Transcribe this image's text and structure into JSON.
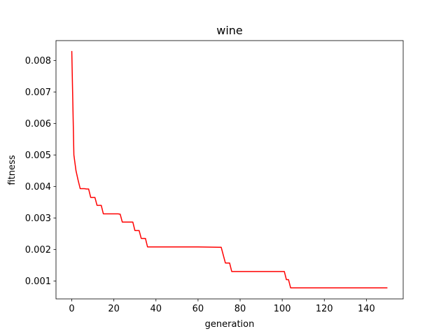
{
  "chart_data": {
    "type": "line",
    "title": "wine",
    "xlabel": "generation",
    "ylabel": "fitness",
    "xlim": [
      -7.5,
      157.5
    ],
    "ylim": [
      0.00043,
      0.00863
    ],
    "xticks": [
      0,
      20,
      40,
      60,
      80,
      100,
      120,
      140
    ],
    "yticks": [
      0.001,
      0.002,
      0.003,
      0.004,
      0.005,
      0.006,
      0.007,
      0.008
    ],
    "xtick_labels": [
      "0",
      "20",
      "40",
      "60",
      "80",
      "100",
      "120",
      "140"
    ],
    "ytick_labels": [
      "0.001",
      "0.002",
      "0.003",
      "0.004",
      "0.005",
      "0.006",
      "0.007",
      "0.008"
    ],
    "grid": false,
    "series": [
      {
        "color": "#ff0000",
        "x": [
          0,
          1,
          2,
          3,
          4,
          5,
          6,
          7,
          8,
          9,
          10,
          11,
          12,
          13,
          14,
          15,
          22,
          23,
          24,
          28,
          29,
          30,
          31,
          32,
          33,
          34,
          35,
          36,
          60,
          70,
          71,
          72,
          73,
          74,
          75,
          76,
          100,
          101,
          102,
          103,
          104,
          150
        ],
        "y": [
          0.0083,
          0.005,
          0.0045,
          0.0042,
          0.00393,
          0.00393,
          0.00393,
          0.00392,
          0.00392,
          0.00365,
          0.00365,
          0.00365,
          0.0034,
          0.0034,
          0.0034,
          0.00313,
          0.00313,
          0.00312,
          0.00287,
          0.00287,
          0.00287,
          0.0026,
          0.0026,
          0.0026,
          0.00235,
          0.00235,
          0.00235,
          0.00208,
          0.00208,
          0.00207,
          0.00207,
          0.00182,
          0.00157,
          0.00157,
          0.00157,
          0.0013,
          0.0013,
          0.0013,
          0.00104,
          0.00104,
          0.00078,
          0.00078
        ]
      }
    ]
  }
}
